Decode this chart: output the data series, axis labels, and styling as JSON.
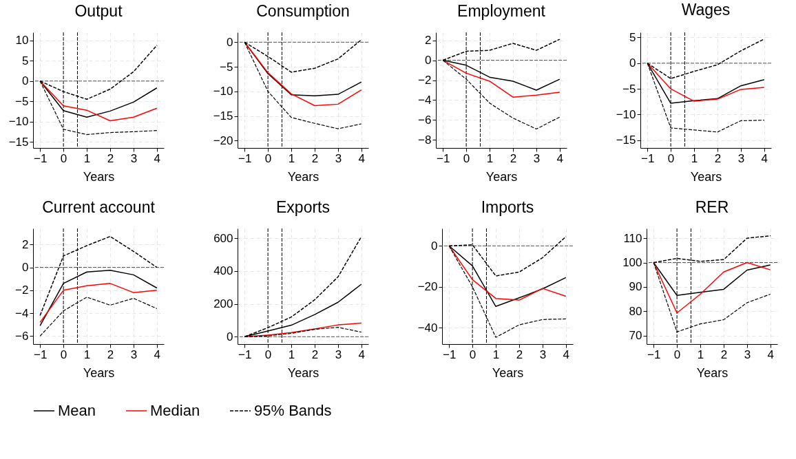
{
  "chart_data": [
    {
      "type": "line",
      "title": "Output",
      "xlabel": "Years",
      "x": [
        -1,
        0,
        1,
        2,
        3,
        4
      ],
      "xlim": [
        -1.3,
        4.3
      ],
      "xticks": [
        -1,
        0,
        1,
        2,
        3,
        4
      ],
      "ylim": [
        -16.5,
        12
      ],
      "yticks": [
        -15,
        -10,
        -5,
        0,
        5,
        10
      ],
      "grid": true,
      "legend": "bottom",
      "series": [
        {
          "name": "Mean",
          "color": "#000000",
          "line_style": "solid",
          "values": [
            0,
            -7.3,
            -8.9,
            -7.4,
            -5.2,
            -1.7
          ]
        },
        {
          "name": "Median",
          "color": "#ff0000",
          "line_style": "solid",
          "values": [
            0,
            -6.1,
            -7.2,
            -9.8,
            -8.9,
            -6.7
          ]
        },
        {
          "name": "95% Bands",
          "color": "#000000",
          "line_style": "dashed",
          "values": [
            0,
            -2.6,
            -4.5,
            -2,
            2.3,
            8.8
          ]
        },
        {
          "color": "#000000",
          "line_style": "dashed",
          "values": [
            0,
            -11.9,
            -13.2,
            -12.7,
            -12.5,
            -12.2
          ]
        }
      ],
      "ref_lines": [
        {
          "axis": "y",
          "value": 0,
          "color": "#555555",
          "line_style": "dashed"
        },
        {
          "axis": "x",
          "value": 0,
          "color": "#000000",
          "line_style": "dashed"
        },
        {
          "axis": "x",
          "value": 0.6,
          "color": "#000000",
          "line_style": "dashed"
        }
      ]
    },
    {
      "type": "line",
      "title": "Consumption",
      "xlabel": "Years",
      "x": [
        -1,
        0,
        1,
        2,
        3,
        4
      ],
      "xlim": [
        -1.3,
        4.3
      ],
      "xticks": [
        -1,
        0,
        1,
        2,
        3,
        4
      ],
      "ylim": [
        -21.5,
        2
      ],
      "yticks": [
        -20,
        -15,
        -10,
        -5,
        0
      ],
      "grid": true,
      "legend": "bottom",
      "series": [
        {
          "name": "Mean",
          "color": "#000000",
          "line_style": "solid",
          "values": [
            0,
            -6.4,
            -10.7,
            -10.9,
            -10.6,
            -8.1
          ]
        },
        {
          "name": "Median",
          "color": "#ff0000",
          "line_style": "solid",
          "values": [
            0,
            -6.2,
            -10.5,
            -12.9,
            -12.6,
            -9.7
          ]
        },
        {
          "name": "95% Bands",
          "color": "#000000",
          "line_style": "dashed",
          "values": [
            0,
            -2.9,
            -6.1,
            -5.3,
            -3.4,
            0.5
          ]
        },
        {
          "color": "#000000",
          "line_style": "dashed",
          "values": [
            0,
            -10,
            -15.3,
            -16.5,
            -17.6,
            -16.6
          ]
        }
      ],
      "ref_lines": [
        {
          "axis": "y",
          "value": 0,
          "color": "#555555",
          "line_style": "dashed"
        },
        {
          "axis": "x",
          "value": 0,
          "color": "#000000",
          "line_style": "dashed"
        },
        {
          "axis": "x",
          "value": 0.6,
          "color": "#000000",
          "line_style": "dashed"
        }
      ]
    },
    {
      "type": "line",
      "title": "Employment",
      "xlabel": "Years",
      "x": [
        -1,
        0,
        1,
        2,
        3,
        4
      ],
      "xlim": [
        -1.3,
        4.3
      ],
      "xticks": [
        -1,
        0,
        1,
        2,
        3,
        4
      ],
      "ylim": [
        -8.8,
        2.8
      ],
      "yticks": [
        -8,
        -6,
        -4,
        -2,
        0,
        2
      ],
      "grid": true,
      "legend": "bottom",
      "series": [
        {
          "name": "Mean",
          "color": "#000000",
          "line_style": "solid",
          "values": [
            0,
            -0.5,
            -1.7,
            -2.1,
            -3,
            -1.9
          ]
        },
        {
          "name": "Median",
          "color": "#ff0000",
          "line_style": "solid",
          "values": [
            0,
            -1.3,
            -2.1,
            -3.7,
            -3.5,
            -3.2
          ]
        },
        {
          "name": "95% Bands",
          "color": "#000000",
          "line_style": "dashed",
          "values": [
            0,
            0.9,
            1,
            1.7,
            1,
            2.1
          ]
        },
        {
          "color": "#000000",
          "line_style": "dashed",
          "values": [
            0,
            -1.9,
            -4.3,
            -5.8,
            -6.9,
            -5.7
          ]
        }
      ],
      "ref_lines": [
        {
          "axis": "y",
          "value": 0,
          "color": "#555555",
          "line_style": "dashed"
        },
        {
          "axis": "x",
          "value": 0,
          "color": "#000000",
          "line_style": "dashed"
        },
        {
          "axis": "x",
          "value": 0.6,
          "color": "#000000",
          "line_style": "dashed"
        }
      ]
    },
    {
      "type": "line",
      "title": "Wages",
      "xlabel": "Years",
      "x": [
        -1,
        0,
        1,
        2,
        3,
        4
      ],
      "xlim": [
        -1.3,
        4.3
      ],
      "xticks": [
        -1,
        0,
        1,
        2,
        3,
        4
      ],
      "ylim": [
        -16.5,
        6
      ],
      "yticks": [
        -15,
        -10,
        -5,
        0,
        5
      ],
      "grid": true,
      "legend": "bottom",
      "series": [
        {
          "name": "Mean",
          "color": "#000000",
          "line_style": "solid",
          "values": [
            0,
            -7.8,
            -7.3,
            -6.9,
            -4.4,
            -3.2
          ]
        },
        {
          "name": "Median",
          "color": "#ff0000",
          "line_style": "solid",
          "values": [
            0,
            -5,
            -7.4,
            -7,
            -5.1,
            -4.7
          ]
        },
        {
          "name": "95% Bands",
          "color": "#000000",
          "line_style": "dashed",
          "values": [
            0,
            -3,
            -1.6,
            -0.3,
            2.4,
            4.7
          ]
        },
        {
          "color": "#000000",
          "line_style": "dashed",
          "values": [
            0,
            -12.6,
            -13,
            -13.4,
            -11.2,
            -11.1
          ]
        }
      ],
      "ref_lines": [
        {
          "axis": "y",
          "value": 0,
          "color": "#555555",
          "line_style": "dashed"
        },
        {
          "axis": "x",
          "value": 0,
          "color": "#000000",
          "line_style": "dashed"
        },
        {
          "axis": "x",
          "value": 0.6,
          "color": "#000000",
          "line_style": "dashed"
        }
      ]
    },
    {
      "type": "line",
      "title": "Current account",
      "xlabel": "Years",
      "x": [
        -1,
        0,
        1,
        2,
        3,
        4
      ],
      "xlim": [
        -1.3,
        4.3
      ],
      "xticks": [
        -1,
        0,
        1,
        2,
        3,
        4
      ],
      "ylim": [
        -6.7,
        3.4
      ],
      "yticks": [
        -6,
        -4,
        -2,
        0,
        2
      ],
      "grid": true,
      "legend": "bottom",
      "series": [
        {
          "name": "Mean",
          "color": "#000000",
          "line_style": "solid",
          "values": [
            -5.1,
            -1.4,
            -0.4,
            -0.25,
            -0.65,
            -1.8
          ]
        },
        {
          "name": "Median",
          "color": "#ff0000",
          "line_style": "solid",
          "values": [
            -4.8,
            -2,
            -1.6,
            -1.4,
            -2.2,
            -2
          ]
        },
        {
          "name": "95% Bands",
          "color": "#000000",
          "line_style": "dashed",
          "values": [
            -4.2,
            1,
            1.9,
            2.7,
            1.4,
            0
          ]
        },
        {
          "color": "#000000",
          "line_style": "dashed",
          "values": [
            -6,
            -3.8,
            -2.6,
            -3.3,
            -2.7,
            -3.6
          ]
        }
      ],
      "ref_lines": [
        {
          "axis": "y",
          "value": 0,
          "color": "#555555",
          "line_style": "dashed"
        },
        {
          "axis": "x",
          "value": 0,
          "color": "#000000",
          "line_style": "dashed"
        },
        {
          "axis": "x",
          "value": 0.6,
          "color": "#000000",
          "line_style": "dashed"
        }
      ]
    },
    {
      "type": "line",
      "title": "Exports",
      "xlabel": "Years",
      "x": [
        -1,
        0,
        1,
        2,
        3,
        4
      ],
      "xlim": [
        -1.3,
        4.3
      ],
      "xticks": [
        -1,
        0,
        1,
        2,
        3,
        4
      ],
      "ylim": [
        -45,
        660
      ],
      "yticks": [
        0,
        200,
        400,
        600
      ],
      "grid": true,
      "legend": "bottom",
      "series": [
        {
          "name": "Mean",
          "color": "#000000",
          "line_style": "solid",
          "values": [
            0,
            35,
            70,
            135,
            210,
            320
          ]
        },
        {
          "name": "Median",
          "color": "#ff0000",
          "line_style": "solid",
          "values": [
            0,
            10,
            25,
            47,
            72,
            83
          ]
        },
        {
          "name": "95% Bands",
          "color": "#000000",
          "line_style": "dashed",
          "values": [
            0,
            55,
            120,
            225,
            365,
            610
          ]
        },
        {
          "color": "#000000",
          "line_style": "dashed",
          "values": [
            0,
            5,
            20,
            45,
            57,
            28
          ]
        }
      ],
      "ref_lines": [
        {
          "axis": "y",
          "value": 0,
          "color": "#555555",
          "line_style": "dashed"
        },
        {
          "axis": "x",
          "value": 0,
          "color": "#000000",
          "line_style": "dashed"
        },
        {
          "axis": "x",
          "value": 0.6,
          "color": "#000000",
          "line_style": "dashed"
        }
      ]
    },
    {
      "type": "line",
      "title": "Imports",
      "xlabel": "Years",
      "x": [
        -1,
        0,
        1,
        2,
        3,
        4
      ],
      "xlim": [
        -1.3,
        4.3
      ],
      "xticks": [
        -1,
        0,
        1,
        2,
        3,
        4
      ],
      "ylim": [
        -48,
        8.5
      ],
      "yticks": [
        -40,
        -20,
        0
      ],
      "grid": true,
      "legend": "bottom",
      "series": [
        {
          "name": "Mean",
          "color": "#000000",
          "line_style": "solid",
          "values": [
            0,
            -9.8,
            -29.6,
            -25.4,
            -21,
            -15.5
          ]
        },
        {
          "name": "Median",
          "color": "#ff0000",
          "line_style": "solid",
          "values": [
            0,
            -16.5,
            -25.7,
            -26.5,
            -20.8,
            -24.6
          ]
        },
        {
          "name": "95% Bands",
          "color": "#000000",
          "line_style": "dashed",
          "values": [
            0,
            0.5,
            -14.7,
            -12.8,
            -5.8,
            4.5
          ]
        },
        {
          "color": "#000000",
          "line_style": "dashed",
          "values": [
            0,
            -20,
            -44.7,
            -38.6,
            -36,
            -35.7
          ]
        }
      ],
      "ref_lines": [
        {
          "axis": "y",
          "value": 0,
          "color": "#555555",
          "line_style": "dashed"
        },
        {
          "axis": "x",
          "value": 0,
          "color": "#000000",
          "line_style": "dashed"
        },
        {
          "axis": "x",
          "value": 0.6,
          "color": "#000000",
          "line_style": "dashed"
        }
      ]
    },
    {
      "type": "line",
      "title": "RER",
      "xlabel": "Years",
      "x": [
        -1,
        0,
        1,
        2,
        3,
        4
      ],
      "xlim": [
        -1.3,
        4.3
      ],
      "xticks": [
        -1,
        0,
        1,
        2,
        3,
        4
      ],
      "ylim": [
        66.5,
        114
      ],
      "yticks": [
        70,
        80,
        90,
        100,
        110
      ],
      "grid": true,
      "legend": "bottom",
      "series": [
        {
          "name": "Mean",
          "color": "#000000",
          "line_style": "solid",
          "values": [
            100,
            86.5,
            87.8,
            89,
            96.9,
            99
          ]
        },
        {
          "name": "Median",
          "color": "#ff0000",
          "line_style": "solid",
          "values": [
            100,
            79.3,
            87,
            96.1,
            100,
            97
          ]
        },
        {
          "name": "95% Bands",
          "color": "#000000",
          "line_style": "dashed",
          "values": [
            100,
            101.7,
            100.5,
            101.2,
            110,
            111
          ]
        },
        {
          "color": "#000000",
          "line_style": "dashed",
          "values": [
            100,
            71.5,
            74.8,
            76.5,
            83.5,
            87
          ]
        }
      ],
      "ref_lines": [
        {
          "axis": "y",
          "value": 100,
          "color": "#555555",
          "line_style": "dashed"
        },
        {
          "axis": "x",
          "value": 0,
          "color": "#000000",
          "line_style": "dashed"
        },
        {
          "axis": "x",
          "value": 0.6,
          "color": "#000000",
          "line_style": "dashed"
        }
      ]
    }
  ]
}
